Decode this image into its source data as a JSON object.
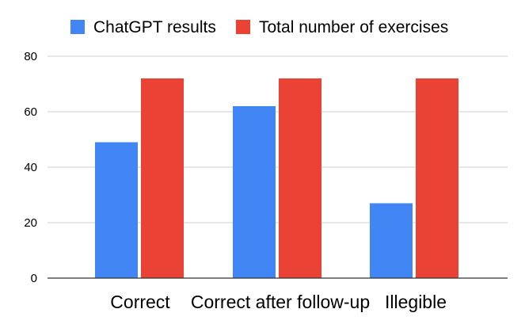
{
  "chart_data": {
    "type": "bar",
    "categories": [
      "Correct",
      "Correct after follow-up",
      "Illegible"
    ],
    "series": [
      {
        "name": "ChatGPT results",
        "color": "#4285f4",
        "values": [
          49,
          62,
          27
        ]
      },
      {
        "name": "Total number of exercises",
        "color": "#ea4335",
        "values": [
          72,
          72,
          72
        ]
      }
    ],
    "ylim": [
      0,
      80
    ],
    "yticks": [
      0,
      20,
      40,
      60,
      80
    ],
    "grid": true,
    "legend": "top-center",
    "title": "",
    "xlabel": "",
    "ylabel": ""
  }
}
